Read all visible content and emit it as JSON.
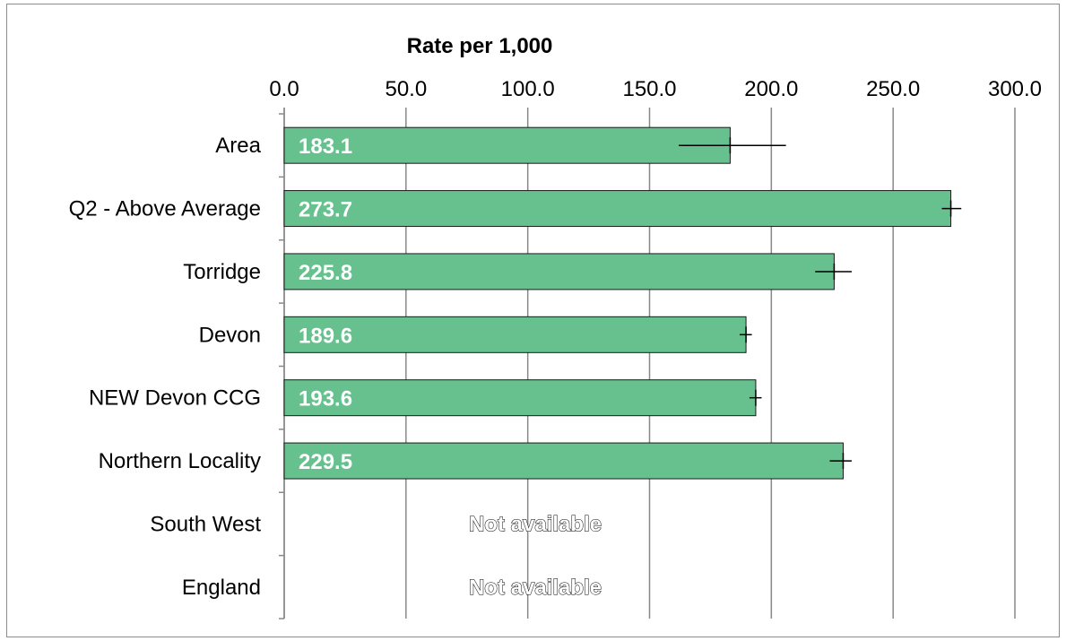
{
  "chart_data": {
    "type": "bar",
    "orientation": "horizontal",
    "title": "Rate per 1,000",
    "xlim": [
      0,
      300
    ],
    "ticks": [
      "0.0",
      "50.0",
      "100.0",
      "150.0",
      "200.0",
      "250.0",
      "300.0"
    ],
    "tick_values": [
      0,
      50,
      100,
      150,
      200,
      250,
      300
    ],
    "axis_position": "top",
    "grid": true,
    "bar_color": "#66c18e",
    "categories": [
      "Area",
      "Q2 - Above Average",
      "Torridge",
      "Devon",
      "NEW Devon CCG",
      "Northern Locality",
      "South West",
      "England"
    ],
    "values": [
      183.1,
      273.7,
      225.8,
      189.6,
      193.6,
      229.5,
      null,
      null
    ],
    "value_labels": [
      "183.1",
      "273.7",
      "225.8",
      "189.6",
      "193.6",
      "229.5",
      "",
      ""
    ],
    "error_low": [
      162,
      270,
      218,
      187,
      191,
      224,
      null,
      null
    ],
    "error_high": [
      206,
      278,
      233,
      192,
      196,
      233,
      null,
      null
    ],
    "missing_label": "Not available"
  }
}
